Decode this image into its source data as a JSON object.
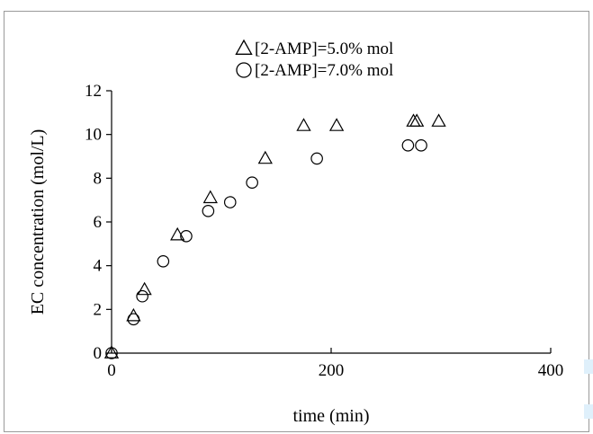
{
  "chart_data": {
    "type": "scatter",
    "xlabel": "time (min)",
    "ylabel": "EC concentration (mol/L)",
    "xlim": [
      0,
      400
    ],
    "ylim": [
      0,
      12
    ],
    "x_ticks": [
      0,
      200,
      400
    ],
    "y_ticks": [
      0,
      2,
      4,
      6,
      8,
      10,
      12
    ],
    "grid": false,
    "legend": "top-center",
    "series": [
      {
        "name": "[2-AMP]=5.0% mol",
        "marker": "triangle",
        "points": [
          {
            "x": 0,
            "y": 0
          },
          {
            "x": 20,
            "y": 1.7
          },
          {
            "x": 30,
            "y": 2.9
          },
          {
            "x": 60,
            "y": 5.4
          },
          {
            "x": 90,
            "y": 7.1
          },
          {
            "x": 140,
            "y": 8.9
          },
          {
            "x": 175,
            "y": 10.4
          },
          {
            "x": 205,
            "y": 10.4
          },
          {
            "x": 275,
            "y": 10.6
          },
          {
            "x": 278,
            "y": 10.6
          },
          {
            "x": 298,
            "y": 10.6
          }
        ]
      },
      {
        "name": "[2-AMP]=7.0% mol",
        "marker": "circle",
        "points": [
          {
            "x": 0,
            "y": 0
          },
          {
            "x": 20,
            "y": 1.55
          },
          {
            "x": 28,
            "y": 2.6
          },
          {
            "x": 47,
            "y": 4.2
          },
          {
            "x": 68,
            "y": 5.35
          },
          {
            "x": 88,
            "y": 6.5
          },
          {
            "x": 108,
            "y": 6.9
          },
          {
            "x": 128,
            "y": 7.8
          },
          {
            "x": 187,
            "y": 8.9
          },
          {
            "x": 270,
            "y": 9.5
          },
          {
            "x": 282,
            "y": 9.5
          }
        ]
      }
    ]
  }
}
